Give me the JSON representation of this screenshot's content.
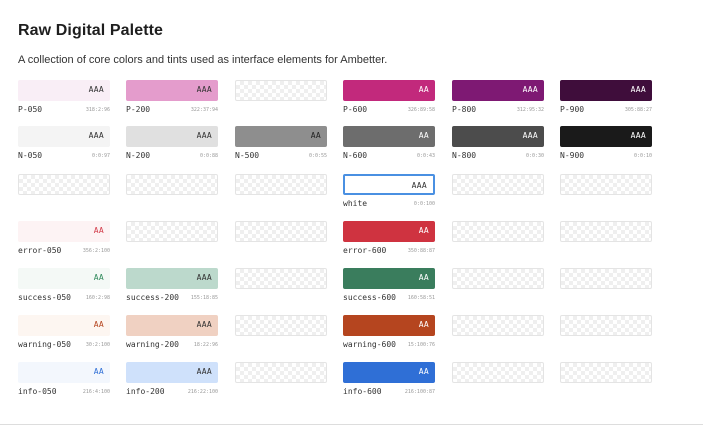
{
  "header": {
    "title": "Raw Digital Palette",
    "description": "A collection of core colors and tints used as interface elements for Ambetter."
  },
  "rows": [
    [
      {
        "label": "P-050",
        "value": "318:2:96",
        "grade": "AAA",
        "color": "#f9eef6",
        "text_color": "#333333"
      },
      {
        "label": "P-200",
        "value": "322:37:94",
        "grade": "AAA",
        "color": "#e49ccc",
        "text_color": "#333333"
      },
      {
        "empty": true
      },
      {
        "label": "P-600",
        "value": "326:89:58",
        "grade": "AA",
        "color": "#c2297c",
        "text_color": "#ffffff"
      },
      {
        "label": "P-800",
        "value": "312:95:32",
        "grade": "AAA",
        "color": "#7e1973",
        "text_color": "#ffffff"
      },
      {
        "label": "P-900",
        "value": "305:88:27",
        "grade": "AAA",
        "color": "#3f0d3b",
        "text_color": "#ffffff"
      }
    ],
    [
      {
        "label": "N-050",
        "value": "0:0:97",
        "grade": "AAA",
        "color": "#f4f4f4",
        "text_color": "#333333"
      },
      {
        "label": "N-200",
        "value": "0:0:88",
        "grade": "AAA",
        "color": "#e0e0e0",
        "text_color": "#333333"
      },
      {
        "label": "N-500",
        "value": "0:0:55",
        "grade": "AA",
        "color": "#8e8e8e",
        "text_color": "#222222"
      },
      {
        "label": "N-600",
        "value": "0:0:43",
        "grade": "AA",
        "color": "#6d6d6d",
        "text_color": "#ffffff"
      },
      {
        "label": "N-800",
        "value": "0:0:30",
        "grade": "AAA",
        "color": "#4c4c4c",
        "text_color": "#ffffff"
      },
      {
        "label": "N-900",
        "value": "0:0:10",
        "grade": "AAA",
        "color": "#1a1a1a",
        "text_color": "#ffffff"
      }
    ],
    [
      {
        "empty": true
      },
      {
        "empty": true
      },
      {
        "empty": true
      },
      {
        "label": "white",
        "value": "0:0:100",
        "grade": "AAA",
        "color": "#ffffff",
        "text_color": "#333333",
        "outlined": true
      },
      {
        "empty": true
      },
      {
        "empty": true
      }
    ],
    [
      {
        "label": "error-050",
        "value": "356:2:100",
        "grade": "AA",
        "color": "#fdf3f4",
        "text_color": "#d23a48"
      },
      {
        "empty": true
      },
      {
        "empty": true
      },
      {
        "label": "error-600",
        "value": "350:88:87",
        "grade": "AA",
        "color": "#cf3340",
        "text_color": "#ffffff"
      },
      {
        "empty": true
      },
      {
        "empty": true
      }
    ],
    [
      {
        "label": "success-050",
        "value": "160:2:98",
        "grade": "AA",
        "color": "#f4f9f6",
        "text_color": "#2f8a5b"
      },
      {
        "label": "success-200",
        "value": "155:18:85",
        "grade": "AAA",
        "color": "#bcd9cc",
        "text_color": "#333333"
      },
      {
        "empty": true
      },
      {
        "label": "success-600",
        "value": "160:58:51",
        "grade": "AA",
        "color": "#3a7d5d",
        "text_color": "#ffffff"
      },
      {
        "empty": true
      },
      {
        "empty": true
      }
    ],
    [
      {
        "label": "warning-050",
        "value": "30:2:100",
        "grade": "AA",
        "color": "#fdf6f1",
        "text_color": "#b5451f"
      },
      {
        "label": "warning-200",
        "value": "18:22:96",
        "grade": "AAA",
        "color": "#f0d1c2",
        "text_color": "#333333"
      },
      {
        "empty": true
      },
      {
        "label": "warning-600",
        "value": "15:100:76",
        "grade": "AA",
        "color": "#b5451f",
        "text_color": "#ffffff"
      },
      {
        "empty": true
      },
      {
        "empty": true
      }
    ],
    [
      {
        "label": "info-050",
        "value": "216:4:100",
        "grade": "AA",
        "color": "#f3f7fd",
        "text_color": "#2f6fd6"
      },
      {
        "label": "info-200",
        "value": "216:22:100",
        "grade": "AAA",
        "color": "#cfe1fb",
        "text_color": "#333333"
      },
      {
        "empty": true
      },
      {
        "label": "info-600",
        "value": "216:100:87",
        "grade": "AA",
        "color": "#2f6fd6",
        "text_color": "#ffffff"
      },
      {
        "empty": true
      },
      {
        "empty": true
      }
    ]
  ]
}
